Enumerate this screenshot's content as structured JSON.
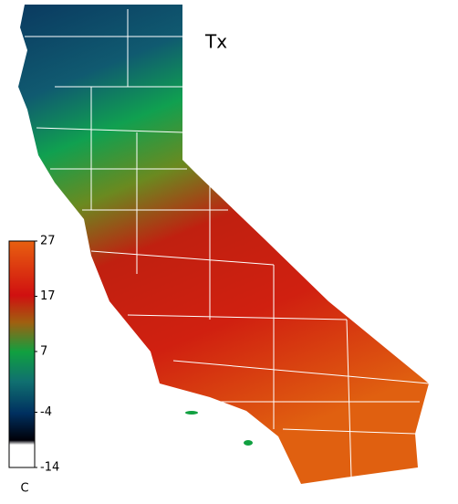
{
  "title": "Tx",
  "colorbar": {
    "unit": "C",
    "lim": [
      -14,
      27
    ],
    "ticks": [
      27,
      17,
      7,
      -4,
      -14
    ]
  }
}
